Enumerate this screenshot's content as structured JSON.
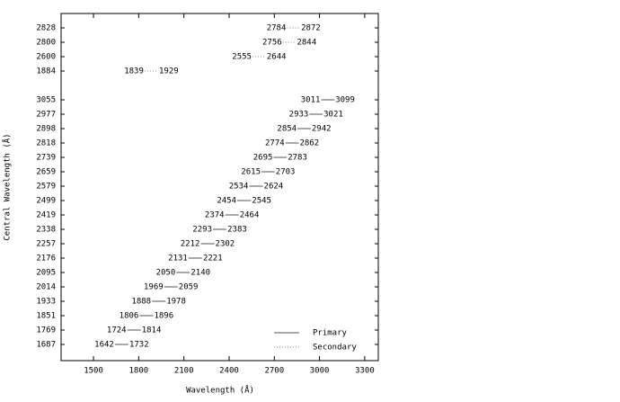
{
  "chart_data": {
    "type": "range",
    "x_label": "Wavelength (Å)",
    "y_label": "Central Wavelength (Å)",
    "xlim": [
      1285,
      3390
    ],
    "xticks": [
      1500,
      1800,
      2100,
      2400,
      2700,
      3000,
      3300
    ],
    "legend": "lower right",
    "series": [
      {
        "name": "Secondary",
        "style": "dotted",
        "color": "#888888",
        "categories": [
          "2828",
          "2800",
          "2600",
          "1884"
        ],
        "start": [
          2784,
          2756,
          2555,
          1839
        ],
        "end": [
          2872,
          2844,
          2644,
          1929
        ]
      },
      {
        "name": "Primary",
        "style": "solid",
        "color": "#555555",
        "categories": [
          "3055",
          "2977",
          "2898",
          "2818",
          "2739",
          "2659",
          "2579",
          "2499",
          "2419",
          "2338",
          "2257",
          "2176",
          "2095",
          "2014",
          "1933",
          "1851",
          "1769",
          "1687"
        ],
        "start": [
          3011,
          2933,
          2854,
          2774,
          2695,
          2615,
          2534,
          2454,
          2374,
          2293,
          2212,
          2131,
          2050,
          1969,
          1888,
          1806,
          1724,
          1642
        ],
        "end": [
          3099,
          3021,
          2942,
          2862,
          2783,
          2703,
          2624,
          2545,
          2464,
          2383,
          2302,
          2221,
          2140,
          2059,
          1978,
          1896,
          1814,
          1732
        ]
      }
    ]
  }
}
